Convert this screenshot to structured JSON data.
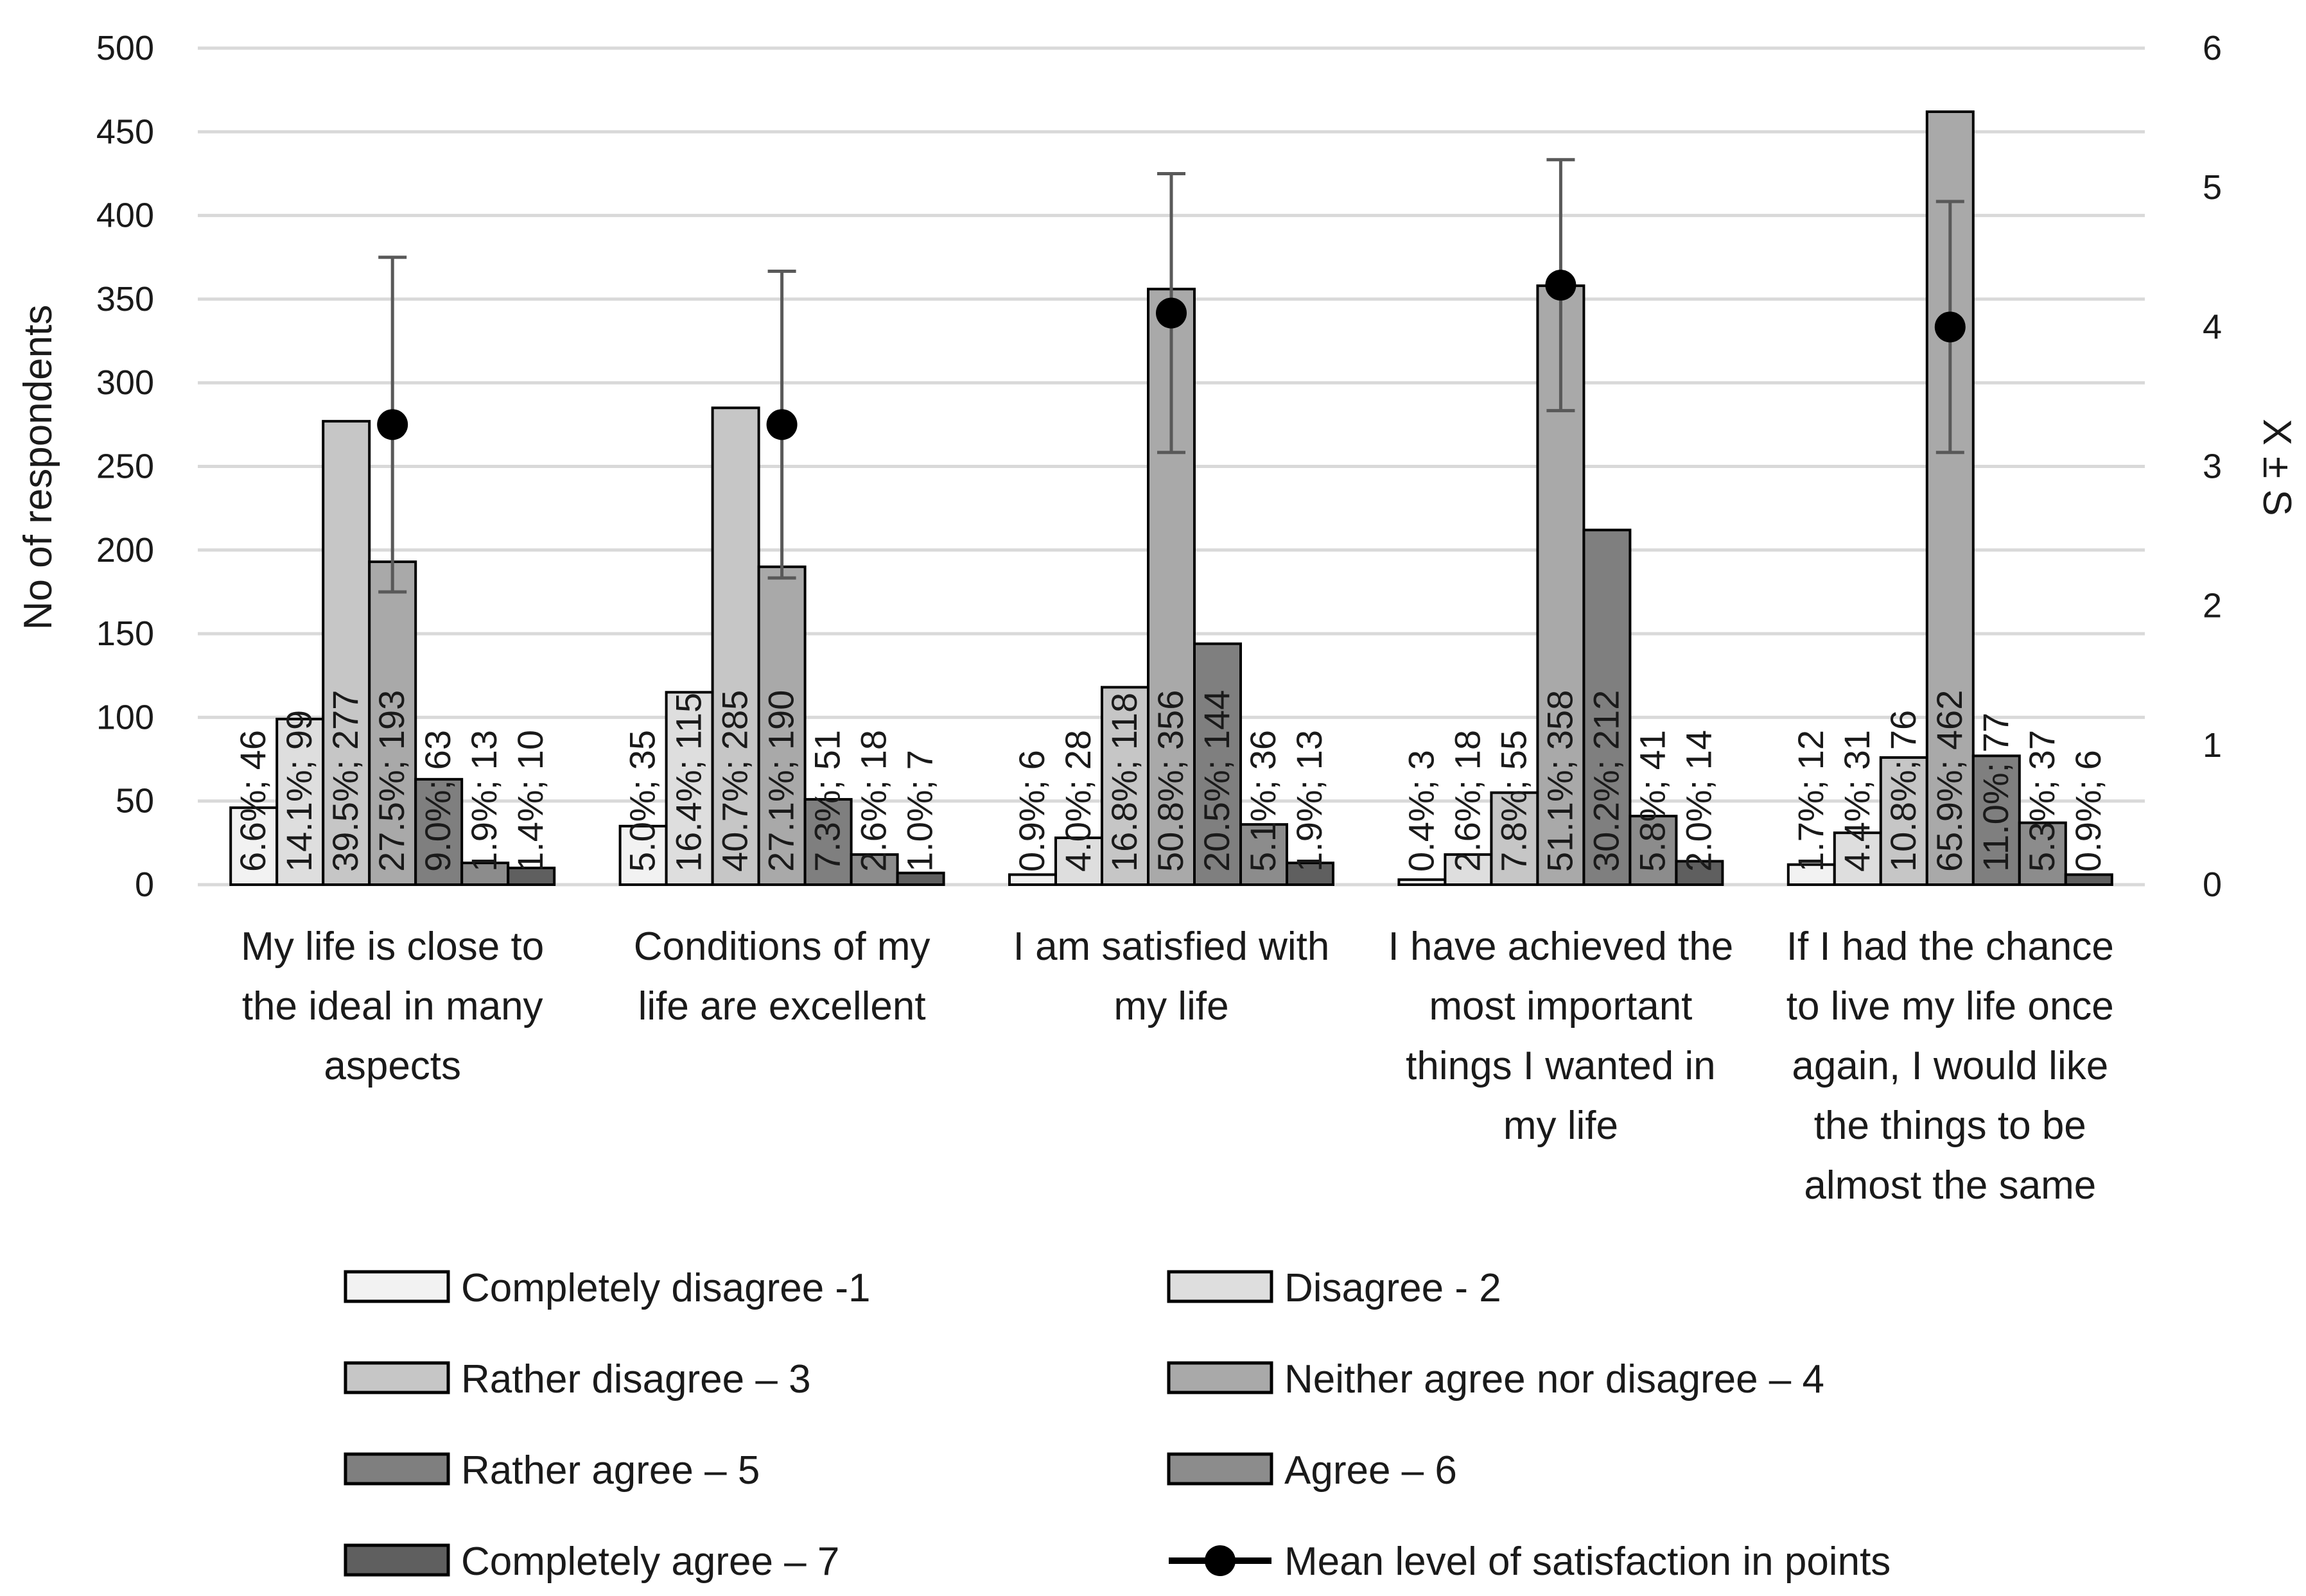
{
  "chart_data": {
    "type": "bar",
    "title": "",
    "xlabel": "",
    "ylabel": "No of respondents",
    "y2label": "X ± S",
    "ylim": [
      0,
      500
    ],
    "yticks": [
      0,
      50,
      100,
      150,
      200,
      250,
      300,
      350,
      400,
      450,
      500
    ],
    "y2lim": [
      0,
      6
    ],
    "y2ticks": [
      0,
      1,
      2,
      3,
      4,
      5,
      6
    ],
    "grid": true,
    "legend_position": "bottom",
    "categories": [
      [
        "My life is close to",
        "the ideal in many",
        "aspects"
      ],
      [
        "Conditions of my",
        "life are excellent"
      ],
      [
        "I am satisfied with",
        "my life"
      ],
      [
        "I have achieved the",
        "most important",
        "things I wanted in",
        "my life"
      ],
      [
        "If I had the chance",
        "to live my life once",
        "again, I would like",
        "the things to be",
        "almost the same"
      ]
    ],
    "series": [
      {
        "name": "Completely disagree  -1",
        "color": "#f2f2f2",
        "values": [
          46,
          35,
          6,
          3,
          12
        ],
        "labels": [
          "6.6%; 46",
          "5.0%; 35",
          "0.9%; 6",
          "0.4%; 3",
          "1.7%; 12"
        ]
      },
      {
        "name": "Disagree - 2",
        "color": "#dedede",
        "values": [
          99,
          115,
          28,
          18,
          31
        ],
        "labels": [
          "14.1%; 99",
          "16.4%; 115",
          "4.0%; 28",
          "2.6%; 18",
          "4.4%; 31"
        ]
      },
      {
        "name": "Rather disagree – 3",
        "color": "#c6c6c6",
        "values": [
          277,
          285,
          118,
          55,
          76
        ],
        "labels": [
          "39.5%; 277",
          "40.7%; 285",
          "16.8%; 118",
          "7.8%; 55",
          "10.8%; 76"
        ]
      },
      {
        "name": "Neither agree nor disagree – 4",
        "color": "#a9a9a9",
        "values": [
          193,
          190,
          356,
          358,
          462
        ],
        "labels": [
          "27.5%; 193",
          "27.1%; 190",
          "50.8%; 356",
          "51.1%; 358",
          "65.9%; 462"
        ]
      },
      {
        "name": "Rather agree – 5",
        "color": "#7f7f7f",
        "values": [
          63,
          51,
          144,
          212,
          77
        ],
        "labels": [
          "9.0%; 63",
          "7.3%; 51",
          "20.5%; 144",
          "30.2%; 212",
          "11.0%; 77"
        ]
      },
      {
        "name": "Agree – 6",
        "color": "#8c8c8c",
        "values": [
          13,
          18,
          36,
          41,
          37
        ],
        "labels": [
          "1.9%; 13",
          "2.6%; 18",
          "5.1%; 36",
          "5.8%; 41",
          "5.3%; 37"
        ]
      },
      {
        "name": "Completely agree – 7",
        "color": "#5f5f5f",
        "values": [
          10,
          7,
          13,
          14,
          6
        ],
        "labels": [
          "1.4%; 10",
          "1.0%; 7",
          "1.9%; 13",
          "2.0%; 14",
          "0.9%; 6"
        ]
      }
    ],
    "mean_series": {
      "name": "Mean level of satisfaction in points",
      "color": "#000000",
      "values": [
        3.3,
        3.3,
        4.1,
        4.3,
        4.0
      ],
      "sd": [
        1.2,
        1.1,
        1.0,
        0.9,
        0.9
      ]
    }
  }
}
